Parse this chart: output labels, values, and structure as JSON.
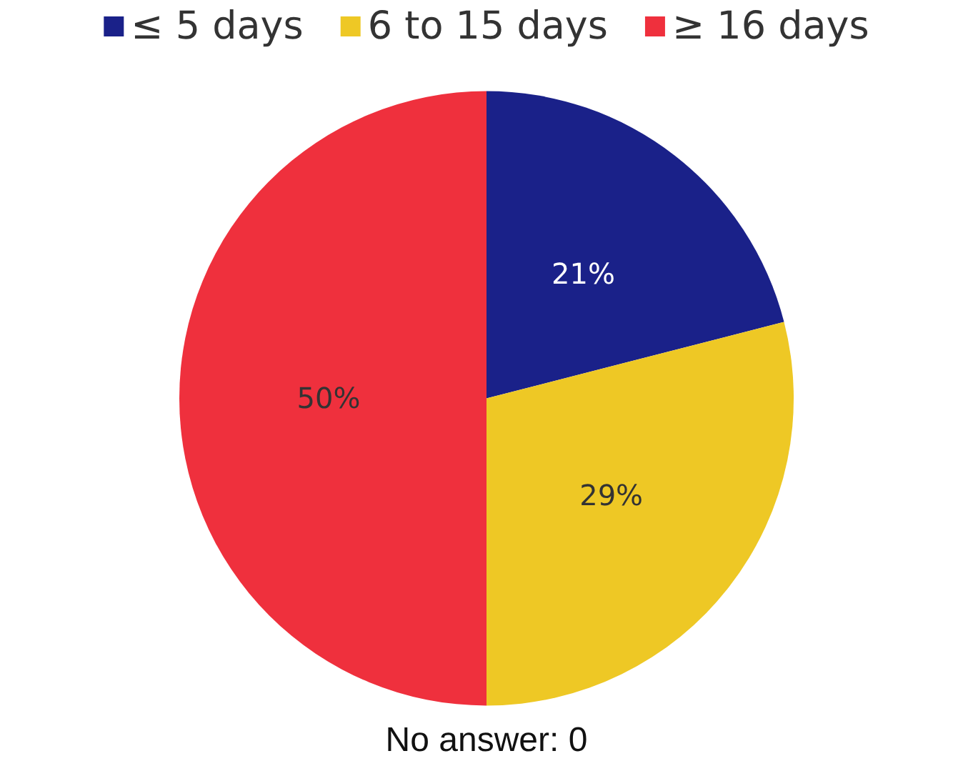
{
  "chart_data": {
    "type": "pie",
    "categories": [
      "≤ 5 days",
      "6 to 15 days",
      "≥ 16 days"
    ],
    "values": [
      21,
      29,
      50
    ],
    "colors": [
      "#1a2189",
      "#eec825",
      "#ef303d"
    ],
    "value_labels": [
      "21%",
      "29%",
      "50%"
    ],
    "legend": "top",
    "annotations": [
      "No answer: 0"
    ]
  }
}
